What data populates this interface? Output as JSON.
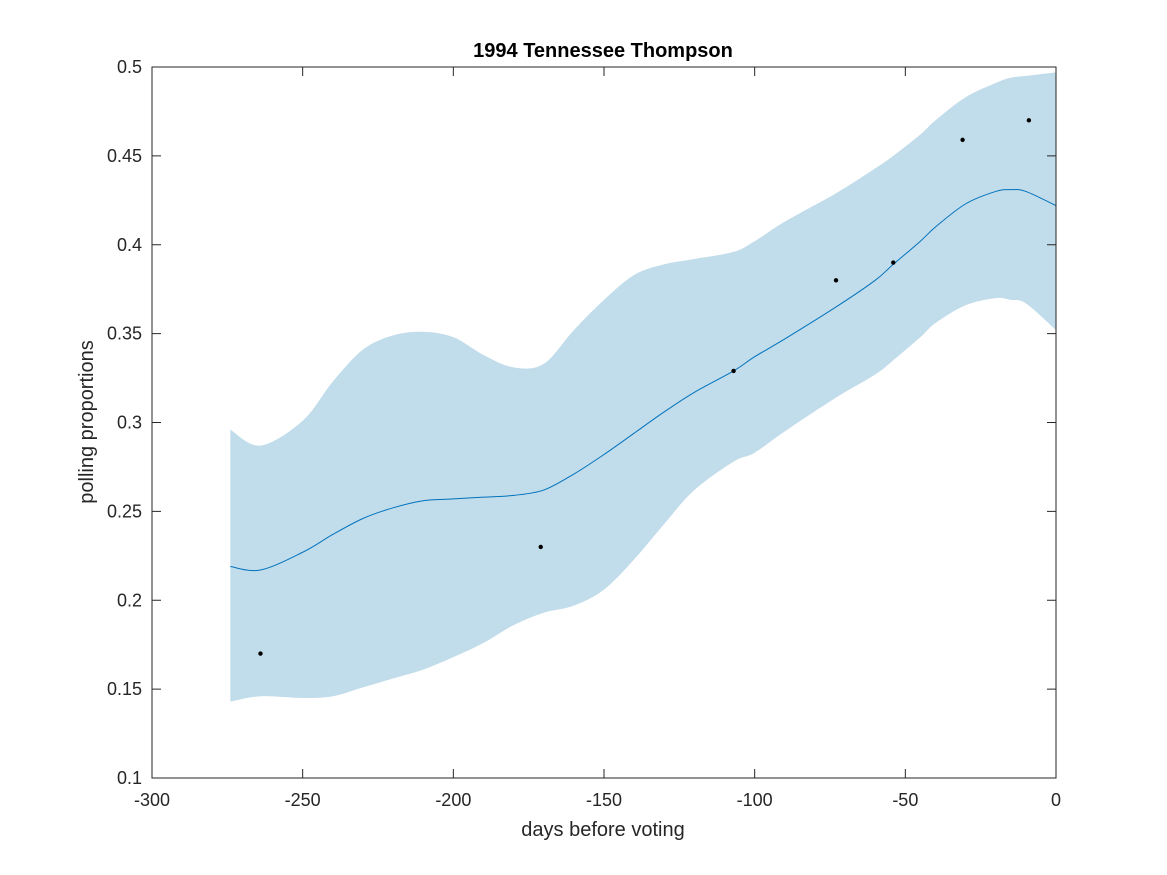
{
  "chart_data": {
    "type": "line",
    "title": "1994 Tennessee Thompson",
    "xlabel": "days before voting",
    "ylabel": "polling proportions",
    "xlim": [
      -300,
      0
    ],
    "ylim": [
      0.1,
      0.5
    ],
    "xticks": [
      -300,
      -250,
      -200,
      -150,
      -100,
      -50,
      0
    ],
    "xtick_labels": [
      "-300",
      "-250",
      "-200",
      "-150",
      "-100",
      "-50",
      "0"
    ],
    "yticks": [
      0.1,
      0.15,
      0.2,
      0.25,
      0.3,
      0.35,
      0.4,
      0.45,
      0.5
    ],
    "ytick_labels": [
      "0.1",
      "0.15",
      "0.2",
      "0.25",
      "0.3",
      "0.35",
      "0.4",
      "0.45",
      "0.5"
    ],
    "grid": false,
    "colors": {
      "line": "#0072BD",
      "band": "#c1dcea",
      "points": "#000000"
    },
    "series": [
      {
        "type": "line",
        "x": [
          -274,
          -264,
          -250,
          -240,
          -230,
          -220,
          -210,
          -200,
          -190,
          -180,
          -170,
          -160,
          -150,
          -140,
          -130,
          -120,
          -107,
          -100,
          -90,
          -73,
          -60,
          -54,
          -45,
          -40,
          -30,
          -20,
          -15,
          -10,
          0
        ],
        "y": [
          0.219,
          0.217,
          0.227,
          0.237,
          0.246,
          0.252,
          0.256,
          0.257,
          0.258,
          0.259,
          0.262,
          0.271,
          0.282,
          0.294,
          0.306,
          0.317,
          0.329,
          0.337,
          0.347,
          0.365,
          0.38,
          0.389,
          0.402,
          0.41,
          0.423,
          0.43,
          0.431,
          0.43,
          0.422
        ]
      },
      {
        "type": "band",
        "x": [
          -274,
          -264,
          -250,
          -240,
          -230,
          -220,
          -210,
          -200,
          -190,
          -180,
          -170,
          -160,
          -150,
          -140,
          -130,
          -120,
          -107,
          -100,
          -90,
          -73,
          -60,
          -54,
          -45,
          -40,
          -30,
          -20,
          -15,
          -10,
          0
        ],
        "upper": [
          0.296,
          0.287,
          0.301,
          0.323,
          0.341,
          0.349,
          0.351,
          0.348,
          0.338,
          0.331,
          0.333,
          0.352,
          0.369,
          0.383,
          0.389,
          0.392,
          0.396,
          0.402,
          0.413,
          0.429,
          0.443,
          0.45,
          0.462,
          0.47,
          0.483,
          0.491,
          0.494,
          0.495,
          0.497
        ],
        "lower": [
          0.143,
          0.146,
          0.145,
          0.146,
          0.151,
          0.156,
          0.161,
          0.168,
          0.176,
          0.186,
          0.193,
          0.197,
          0.206,
          0.223,
          0.243,
          0.262,
          0.278,
          0.283,
          0.295,
          0.314,
          0.327,
          0.335,
          0.348,
          0.356,
          0.366,
          0.37,
          0.369,
          0.367,
          0.352
        ]
      },
      {
        "type": "scatter",
        "x": [
          -264,
          -171,
          -107,
          -73,
          -54,
          -31,
          -9
        ],
        "y": [
          0.17,
          0.23,
          0.329,
          0.38,
          0.39,
          0.459,
          0.47
        ]
      }
    ]
  }
}
